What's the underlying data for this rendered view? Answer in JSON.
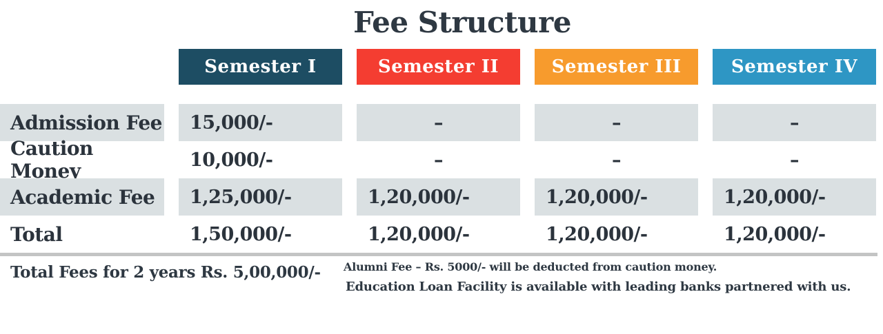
{
  "title": "Fee Structure",
  "colors": {
    "header_semester_1": "#1d4d63",
    "header_semester_2": "#f43d31",
    "header_semester_3": "#f79b2d",
    "header_semester_4": "#2e96c4",
    "shaded_cell": "#dae0e2",
    "divider": "#c3c4c4",
    "text_dark": "#2e3842"
  },
  "table": {
    "columns": [
      {
        "label": "Semester I",
        "color": "#1d4d63"
      },
      {
        "label": "Semester II",
        "color": "#f43d31"
      },
      {
        "label": "Semester III",
        "color": "#f79b2d"
      },
      {
        "label": "Semester IV",
        "color": "#2e96c4"
      }
    ],
    "rows": [
      {
        "label": "Admission Fee",
        "values": [
          "15,000/-",
          "–",
          "–",
          "–"
        ]
      },
      {
        "label": "Caution Money",
        "values": [
          "10,000/-",
          "–",
          "–",
          "–"
        ]
      },
      {
        "label": "Academic Fee",
        "values": [
          "1,25,000/-",
          "1,20,000/-",
          "1,20,000/-",
          "1,20,000/-"
        ]
      },
      {
        "label": "Total",
        "values": [
          "1,50,000/-",
          "1,20,000/-",
          "1,20,000/-",
          "1,20,000/-"
        ]
      }
    ]
  },
  "footer": {
    "total_note": "Total Fees for 2 years Rs. 5,00,000/-",
    "notes": [
      "Alumni Fee – Rs. 5000/- will be deducted from caution money.",
      "Education Loan Facility is available with leading banks partnered with us."
    ]
  },
  "chart_data": {
    "type": "table",
    "title": "Fee Structure",
    "columns": [
      "",
      "Semester I",
      "Semester II",
      "Semester III",
      "Semester IV"
    ],
    "rows": [
      [
        "Admission Fee",
        "15,000/-",
        "–",
        "–",
        "–"
      ],
      [
        "Caution Money",
        "10,000/-",
        "–",
        "–",
        "–"
      ],
      [
        "Academic Fee",
        "1,25,000/-",
        "1,20,000/-",
        "1,20,000/-",
        "1,20,000/-"
      ],
      [
        "Total",
        "1,50,000/-",
        "1,20,000/-",
        "1,20,000/-",
        "1,20,000/-"
      ]
    ],
    "notes": [
      "Total Fees for 2 years Rs. 5,00,000/-",
      "Alumni Fee – Rs. 5000/- will be deducted from caution money.",
      "Education Loan Facility is available with leading banks partnered with us."
    ]
  }
}
